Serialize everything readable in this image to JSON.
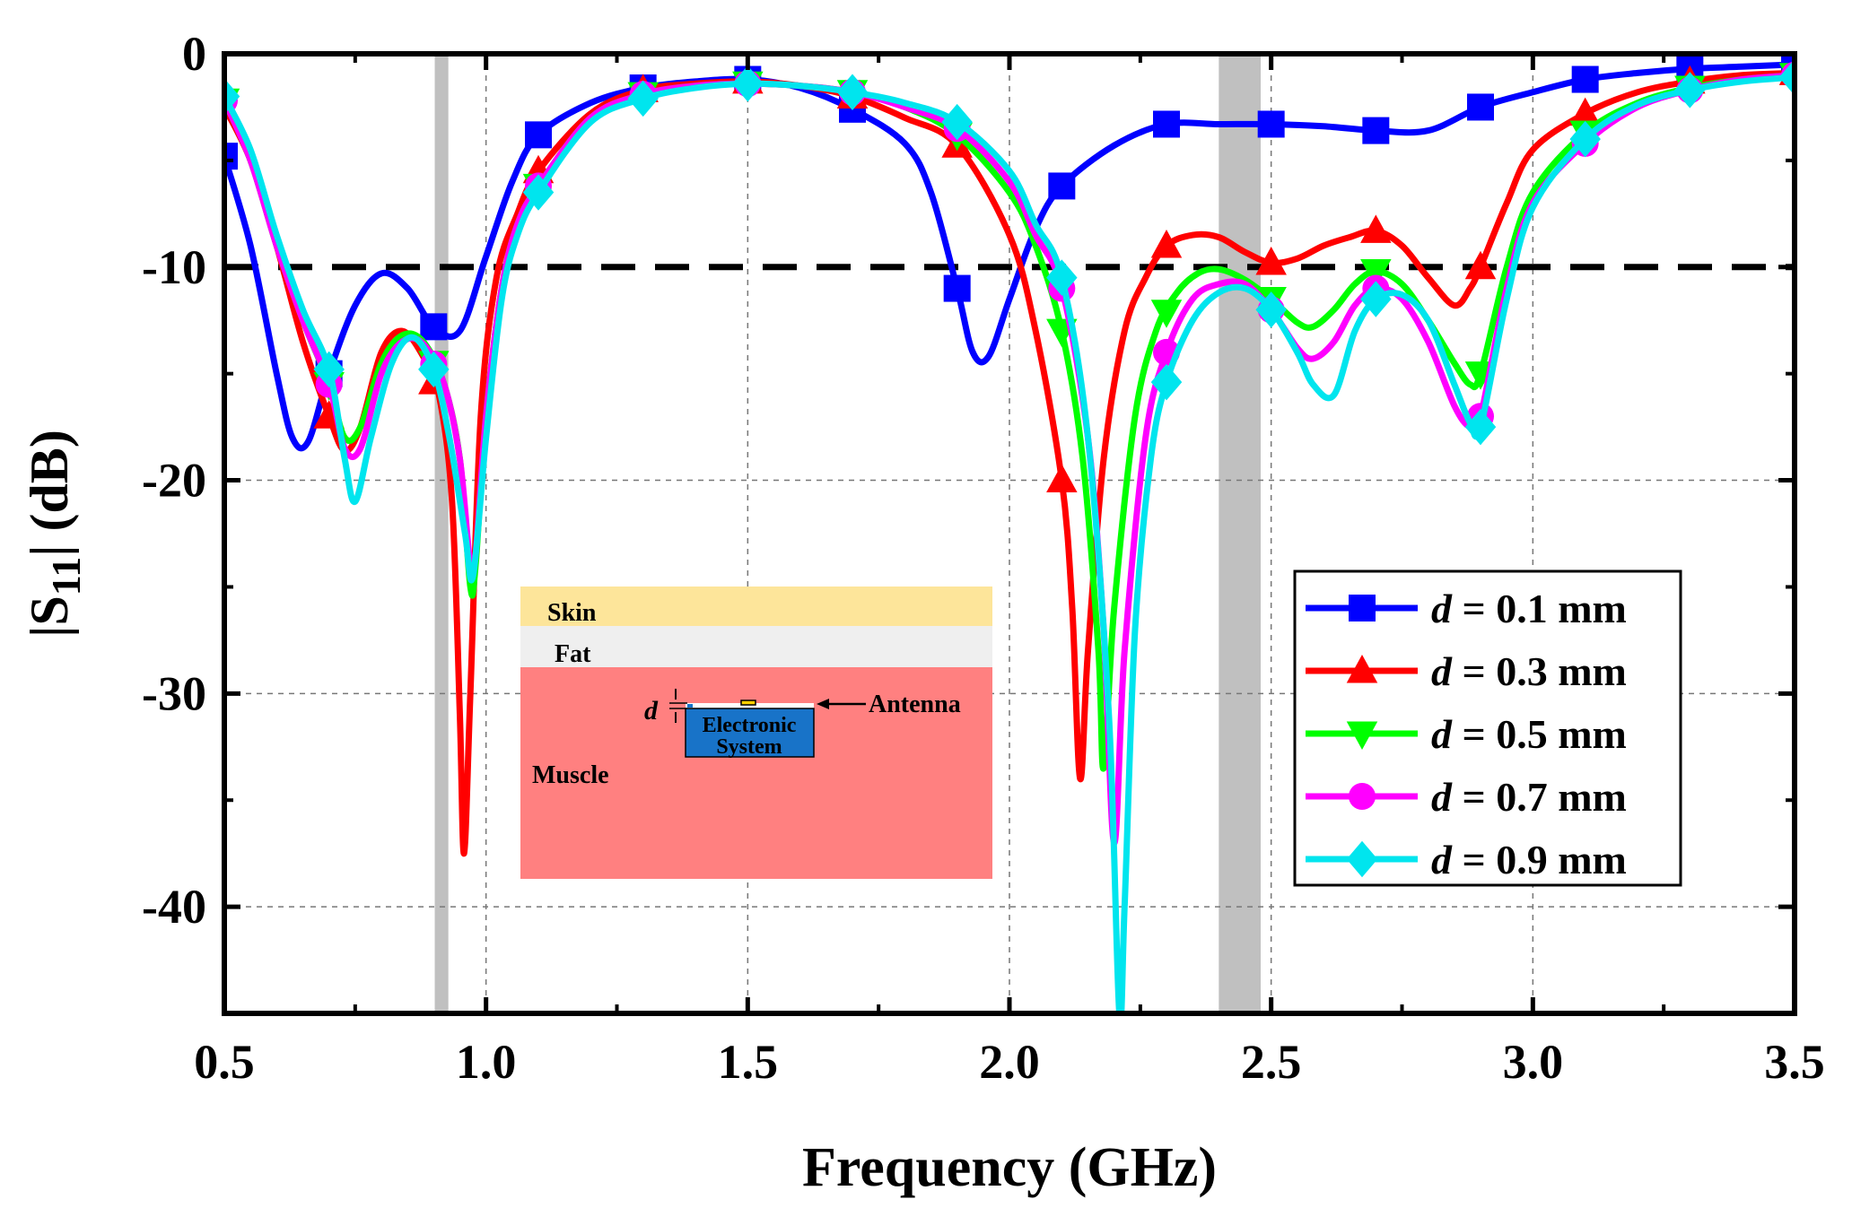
{
  "chart_data": {
    "type": "line",
    "title": "",
    "xlabel": "Frequency (GHz)",
    "ylabel_prefix": "|S",
    "ylabel_sub": "11",
    "ylabel_suffix": "| (dB)",
    "xlim": [
      0.5,
      3.5
    ],
    "ylim": [
      -45,
      0
    ],
    "xticks": [
      0.5,
      1.0,
      1.5,
      2.0,
      2.5,
      3.0,
      3.5
    ],
    "xtick_labels": [
      "0.5",
      "1.0",
      "1.5",
      "2.0",
      "2.5",
      "3.0",
      "3.5"
    ],
    "yticks": [
      0,
      -10,
      -20,
      -30,
      -40
    ],
    "ytick_labels": [
      "0",
      "-10",
      "-20",
      "-30",
      "-40"
    ],
    "grid": true,
    "reference_line": {
      "y": -10,
      "style": "dashed",
      "color": "#000000"
    },
    "shaded_bands": [
      {
        "x0": 0.902,
        "x1": 0.928,
        "color": "#c0c0c0"
      },
      {
        "x0": 2.4,
        "x1": 2.48,
        "color": "#c0c0c0"
      }
    ],
    "legend": {
      "position": "right",
      "entries": [
        {
          "var": "d",
          "text": " = 0.1 mm"
        },
        {
          "var": "d",
          "text": " = 0.3 mm"
        },
        {
          "var": "d",
          "text": " = 0.5 mm"
        },
        {
          "var": "d",
          "text": " = 0.7 mm"
        },
        {
          "var": "d",
          "text": " = 0.9 mm"
        }
      ]
    },
    "series": [
      {
        "name": "d = 0.1 mm",
        "color": "#0000ff",
        "marker": "square",
        "x": [
          0.5,
          0.55,
          0.6,
          0.63,
          0.66,
          0.7,
          0.75,
          0.8,
          0.85,
          0.9,
          0.95,
          1.0,
          1.05,
          1.1,
          1.2,
          1.3,
          1.4,
          1.5,
          1.6,
          1.7,
          1.8,
          1.85,
          1.9,
          1.93,
          1.96,
          2.0,
          2.05,
          2.1,
          2.2,
          2.3,
          2.4,
          2.5,
          2.6,
          2.7,
          2.8,
          2.9,
          3.0,
          3.1,
          3.2,
          3.3,
          3.4,
          3.5
        ],
        "y": [
          -4.8,
          -9,
          -15,
          -18,
          -18.2,
          -15,
          -11.8,
          -10.3,
          -11,
          -12.8,
          -13,
          -9.5,
          -6,
          -3.8,
          -2.3,
          -1.6,
          -1.3,
          -1.2,
          -1.6,
          -2.6,
          -4.2,
          -6.5,
          -11,
          -14,
          -14.2,
          -11.5,
          -8.2,
          -6.2,
          -4.3,
          -3.3,
          -3.3,
          -3.3,
          -3.4,
          -3.6,
          -3.6,
          -2.5,
          -1.8,
          -1.2,
          -0.9,
          -0.7,
          -0.6,
          -0.5
        ],
        "marker_x": [
          0.5,
          0.7,
          0.9,
          1.1,
          1.3,
          1.5,
          1.7,
          1.9,
          2.1,
          2.3,
          2.5,
          2.7,
          2.9,
          3.1,
          3.3,
          3.5
        ]
      },
      {
        "name": "d = 0.3 mm",
        "color": "#ff0000",
        "marker": "triangle-up",
        "x": [
          0.5,
          0.55,
          0.6,
          0.65,
          0.7,
          0.73,
          0.76,
          0.8,
          0.84,
          0.88,
          0.91,
          0.935,
          0.95,
          0.958,
          0.97,
          0.99,
          1.02,
          1.06,
          1.1,
          1.2,
          1.3,
          1.4,
          1.5,
          1.6,
          1.7,
          1.8,
          1.9,
          2.0,
          2.05,
          2.1,
          2.12,
          2.135,
          2.15,
          2.18,
          2.22,
          2.26,
          2.3,
          2.35,
          2.4,
          2.45,
          2.5,
          2.55,
          2.6,
          2.65,
          2.7,
          2.75,
          2.8,
          2.85,
          2.88,
          2.9,
          2.95,
          3.0,
          3.1,
          3.2,
          3.3,
          3.4,
          3.5
        ],
        "y": [
          -2.5,
          -5,
          -9,
          -13.5,
          -17,
          -18.6,
          -17.5,
          -14,
          -13,
          -14.2,
          -16,
          -21,
          -31,
          -37.5,
          -30,
          -17,
          -10.5,
          -7.5,
          -5.5,
          -2.8,
          -1.7,
          -1.4,
          -1.3,
          -1.5,
          -2,
          -3,
          -4.3,
          -8.5,
          -13,
          -20,
          -26,
          -34,
          -28,
          -19,
          -13,
          -10.5,
          -9,
          -8.5,
          -8.6,
          -9.3,
          -9.8,
          -9.6,
          -9,
          -8.6,
          -8.3,
          -9,
          -10.5,
          -11.8,
          -11,
          -10,
          -7,
          -4.5,
          -2.8,
          -1.8,
          -1.3,
          -1.0,
          -0.9
        ],
        "marker_x": [
          0.5,
          0.7,
          0.9,
          1.1,
          1.3,
          1.5,
          1.7,
          1.9,
          2.1,
          2.3,
          2.5,
          2.7,
          2.9,
          3.1,
          3.3,
          3.5
        ]
      },
      {
        "name": "d = 0.5 mm",
        "color": "#00ff00",
        "marker": "triangle-down",
        "x": [
          0.5,
          0.55,
          0.6,
          0.65,
          0.7,
          0.73,
          0.76,
          0.8,
          0.84,
          0.88,
          0.92,
          0.95,
          0.97,
          0.98,
          1.0,
          1.03,
          1.06,
          1.1,
          1.2,
          1.3,
          1.4,
          1.5,
          1.6,
          1.7,
          1.8,
          1.9,
          2.0,
          2.05,
          2.1,
          2.14,
          2.17,
          2.18,
          2.2,
          2.24,
          2.28,
          2.32,
          2.36,
          2.4,
          2.45,
          2.5,
          2.55,
          2.58,
          2.62,
          2.66,
          2.7,
          2.75,
          2.8,
          2.85,
          2.88,
          2.9,
          2.95,
          3.0,
          3.1,
          3.2,
          3.3,
          3.4,
          3.5
        ],
        "y": [
          -2.2,
          -5,
          -9,
          -12.5,
          -15.5,
          -18,
          -17.5,
          -14.5,
          -13.2,
          -13.5,
          -15.5,
          -19,
          -25,
          -24,
          -17,
          -11,
          -8,
          -6.2,
          -3,
          -1.9,
          -1.5,
          -1.4,
          -1.5,
          -1.8,
          -2.5,
          -3.8,
          -6.5,
          -9,
          -13,
          -19,
          -28,
          -33.5,
          -26,
          -17,
          -13,
          -11.2,
          -10.3,
          -10.1,
          -10.6,
          -11.5,
          -12.6,
          -12.8,
          -12,
          -10.8,
          -10.2,
          -10.8,
          -12.5,
          -14.5,
          -15.5,
          -15,
          -10,
          -6.5,
          -3.7,
          -2.3,
          -1.6,
          -1.2,
          -1.0
        ],
        "marker_x": [
          0.5,
          0.7,
          0.9,
          1.1,
          1.3,
          1.5,
          1.7,
          1.9,
          2.1,
          2.3,
          2.5,
          2.7,
          2.9,
          3.1,
          3.3,
          3.5
        ]
      },
      {
        "name": "d = 0.7 mm",
        "color": "#ff00ff",
        "marker": "circle",
        "x": [
          0.5,
          0.55,
          0.6,
          0.65,
          0.7,
          0.73,
          0.76,
          0.8,
          0.84,
          0.88,
          0.92,
          0.95,
          0.97,
          0.98,
          1.0,
          1.03,
          1.06,
          1.1,
          1.2,
          1.3,
          1.4,
          1.5,
          1.6,
          1.7,
          1.8,
          1.9,
          2.0,
          2.05,
          2.1,
          2.15,
          2.18,
          2.2,
          2.22,
          2.26,
          2.3,
          2.35,
          2.4,
          2.45,
          2.5,
          2.55,
          2.58,
          2.62,
          2.66,
          2.7,
          2.75,
          2.8,
          2.85,
          2.88,
          2.9,
          2.95,
          3.0,
          3.1,
          3.2,
          3.3,
          3.4,
          3.5
        ],
        "y": [
          -2.2,
          -5,
          -9,
          -12.5,
          -15.5,
          -18.5,
          -18.5,
          -15,
          -13.5,
          -13.6,
          -15.5,
          -19,
          -24,
          -23.5,
          -17,
          -11,
          -8,
          -6.2,
          -3,
          -1.9,
          -1.5,
          -1.4,
          -1.5,
          -1.8,
          -2.5,
          -3.5,
          -6,
          -8.5,
          -11,
          -18,
          -27,
          -37,
          -28,
          -18,
          -14,
          -11.5,
          -10.8,
          -10.8,
          -12,
          -13.8,
          -14.3,
          -13.5,
          -11.8,
          -11,
          -11.5,
          -13.5,
          -16.5,
          -17.5,
          -17,
          -11,
          -7,
          -4.2,
          -2.5,
          -1.7,
          -1.2,
          -1.0
        ],
        "marker_x": [
          0.5,
          0.7,
          0.9,
          1.1,
          1.3,
          1.5,
          1.7,
          1.9,
          2.1,
          2.3,
          2.5,
          2.7,
          2.9,
          3.1,
          3.3,
          3.5
        ]
      },
      {
        "name": "d = 0.9 mm",
        "color": "#00e5ee",
        "marker": "diamond",
        "x": [
          0.5,
          0.55,
          0.6,
          0.65,
          0.7,
          0.73,
          0.75,
          0.78,
          0.82,
          0.86,
          0.9,
          0.93,
          0.96,
          0.975,
          1.0,
          1.03,
          1.06,
          1.1,
          1.2,
          1.3,
          1.4,
          1.5,
          1.6,
          1.7,
          1.8,
          1.9,
          2.0,
          2.05,
          2.1,
          2.15,
          2.19,
          2.21,
          2.22,
          2.24,
          2.27,
          2.3,
          2.35,
          2.4,
          2.45,
          2.5,
          2.55,
          2.58,
          2.62,
          2.66,
          2.7,
          2.75,
          2.8,
          2.85,
          2.88,
          2.9,
          2.95,
          3.0,
          3.1,
          3.2,
          3.3,
          3.4,
          3.5
        ],
        "y": [
          -2,
          -4.5,
          -8.5,
          -12,
          -14.8,
          -19,
          -21,
          -18,
          -14.5,
          -13.3,
          -14.8,
          -18,
          -22.5,
          -24.5,
          -18,
          -11.5,
          -8.5,
          -6.5,
          -3.2,
          -2.1,
          -1.6,
          -1.4,
          -1.5,
          -1.8,
          -2.3,
          -3.2,
          -5.5,
          -8,
          -10.5,
          -18,
          -31,
          -45,
          -40,
          -27,
          -19,
          -15.4,
          -12.5,
          -11.2,
          -11,
          -12,
          -14,
          -15.5,
          -16,
          -13,
          -11.5,
          -11.3,
          -12.5,
          -15.5,
          -17.3,
          -17.5,
          -11.5,
          -7.2,
          -4,
          -2.4,
          -1.7,
          -1.3,
          -1.1
        ],
        "marker_x": [
          0.5,
          0.7,
          0.9,
          1.1,
          1.3,
          1.5,
          1.7,
          1.9,
          2.1,
          2.3,
          2.5,
          2.7,
          2.9,
          3.1,
          3.3,
          3.5
        ]
      }
    ],
    "inset": {
      "layers": [
        {
          "label": "Skin",
          "color": "#fde59a"
        },
        {
          "label": "Fat",
          "color": "#efefef"
        },
        {
          "label": "Muscle",
          "color": "#ff8080"
        }
      ],
      "device_label_line1": "Electronic",
      "device_label_line2": "System",
      "device_color": "#1873c8",
      "antenna_label": "Antenna",
      "d_label": "d"
    }
  }
}
